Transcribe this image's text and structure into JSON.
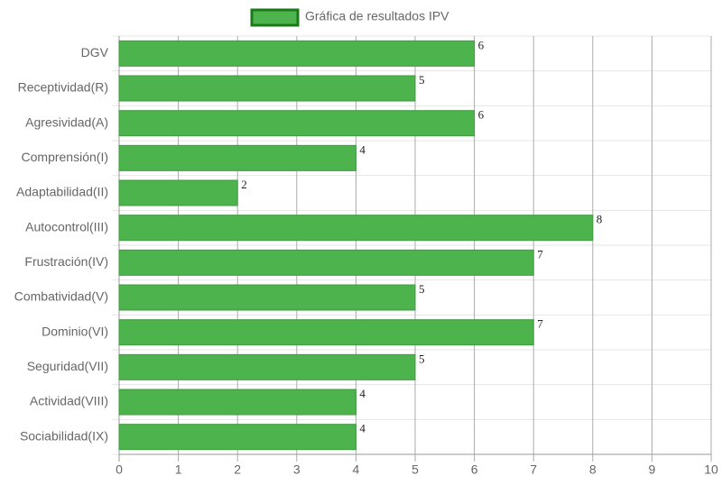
{
  "chart_data": {
    "type": "bar",
    "orientation": "horizontal",
    "categories": [
      "DGV",
      "Receptividad(R)",
      "Agresividad(A)",
      "Comprensión(I)",
      "Adaptabilidad(II)",
      "Autocontrol(III)",
      "Frustración(IV)",
      "Combatividad(V)",
      "Dominio(VI)",
      "Seguridad(VII)",
      "Actividad(VIII)",
      "Sociabilidad(IX)"
    ],
    "series": [
      {
        "name": "Gráfica de resultados IPV",
        "color": "#4db34d",
        "values": [
          6,
          5,
          6,
          4,
          2,
          8,
          7,
          5,
          7,
          5,
          4,
          4
        ]
      }
    ],
    "xlim": [
      0,
      10
    ],
    "xticks": [
      0,
      1,
      2,
      3,
      4,
      5,
      6,
      7,
      8,
      9,
      10
    ],
    "grid": true,
    "legend": "top"
  }
}
